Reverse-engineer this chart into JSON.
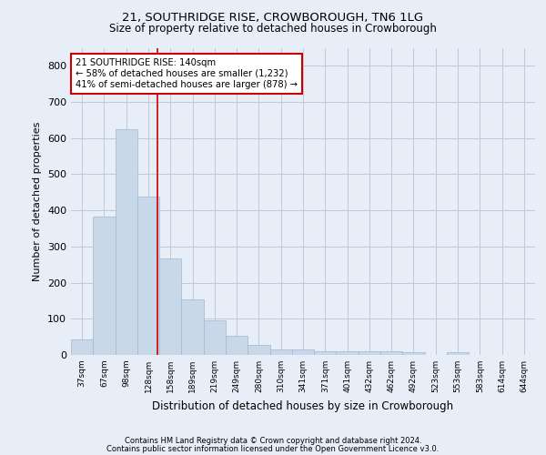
{
  "title": "21, SOUTHRIDGE RISE, CROWBOROUGH, TN6 1LG",
  "subtitle": "Size of property relative to detached houses in Crowborough",
  "xlabel": "Distribution of detached houses by size in Crowborough",
  "ylabel": "Number of detached properties",
  "footnote1": "Contains HM Land Registry data © Crown copyright and database right 2024.",
  "footnote2": "Contains public sector information licensed under the Open Government Licence v3.0.",
  "bar_labels": [
    "37sqm",
    "67sqm",
    "98sqm",
    "128sqm",
    "158sqm",
    "189sqm",
    "219sqm",
    "249sqm",
    "280sqm",
    "310sqm",
    "341sqm",
    "371sqm",
    "401sqm",
    "432sqm",
    "462sqm",
    "492sqm",
    "523sqm",
    "553sqm",
    "583sqm",
    "614sqm",
    "644sqm"
  ],
  "bar_values": [
    44,
    382,
    625,
    438,
    267,
    153,
    95,
    52,
    28,
    15,
    15,
    10,
    10,
    10,
    10,
    8,
    0,
    8,
    0,
    0,
    0
  ],
  "bar_color": "#c8d8e8",
  "bar_edgecolor": "#a0b8d0",
  "vline_color": "#cc0000",
  "annotation_text": "21 SOUTHRIDGE RISE: 140sqm\n← 58% of detached houses are smaller (1,232)\n41% of semi-detached houses are larger (878) →",
  "annotation_box_color": "white",
  "annotation_box_edgecolor": "#cc0000",
  "ylim": [
    0,
    850
  ],
  "yticks": [
    0,
    100,
    200,
    300,
    400,
    500,
    600,
    700,
    800
  ],
  "grid_color": "#c0c8d8",
  "background_color": "#e8eef8"
}
